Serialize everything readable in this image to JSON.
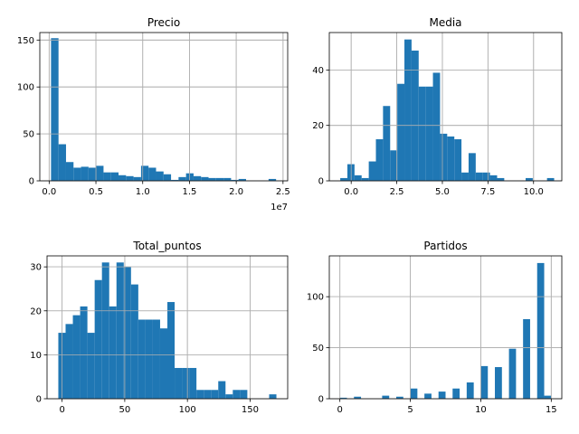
{
  "chart_data": [
    {
      "type": "bar",
      "title": "Precio",
      "xlabel": "",
      "ylabel": "",
      "x_offset_label": "1e7",
      "grid": true,
      "color": "#1f77b4",
      "bin_width": 0.0802,
      "xlim": [
        -0.1,
        2.55
      ],
      "ylim": [
        0,
        158
      ],
      "xticks": [
        0.0,
        0.5,
        1.0,
        1.5,
        2.0,
        2.5
      ],
      "xtick_labels": [
        "0.0",
        "0.5",
        "1.0",
        "1.5",
        "2.0",
        "2.5"
      ],
      "yticks": [
        0,
        50,
        100,
        150
      ],
      "ytick_labels": [
        "0",
        "50",
        "100",
        "150"
      ],
      "bin_starts": [
        0.0198,
        0.1,
        0.1802,
        0.2604,
        0.3406,
        0.4208,
        0.501,
        0.5812,
        0.6614,
        0.7416,
        0.8218,
        0.902,
        0.9822,
        1.0624,
        1.1426,
        1.2228,
        1.303,
        1.3832,
        1.4634,
        1.5436,
        1.6238,
        1.704,
        1.7842,
        1.8644,
        1.9446,
        2.0248,
        2.105,
        2.1852,
        2.2654,
        2.3456
      ],
      "values": [
        152,
        39,
        20,
        14,
        15,
        14,
        16,
        9,
        9,
        6,
        5,
        4,
        16,
        14,
        10,
        7,
        1,
        4,
        8,
        5,
        4,
        3,
        3,
        3,
        1,
        2,
        0,
        0,
        0,
        2
      ]
    },
    {
      "type": "bar",
      "title": "Media",
      "xlabel": "",
      "ylabel": "",
      "grid": true,
      "color": "#1f77b4",
      "bin_width": 0.391,
      "xlim": [
        -1.2,
        11.55
      ],
      "ylim": [
        0,
        53.5
      ],
      "xticks": [
        0.0,
        2.5,
        5.0,
        7.5,
        10.0
      ],
      "xtick_labels": [
        "0.0",
        "2.5",
        "5.0",
        "7.5",
        "10.0"
      ],
      "yticks": [
        0,
        20,
        40
      ],
      "ytick_labels": [
        "0",
        "20",
        "40"
      ],
      "bin_starts": [
        -0.6,
        -0.209,
        0.182,
        0.573,
        0.964,
        1.355,
        1.746,
        2.137,
        2.528,
        2.919,
        3.31,
        3.701,
        4.092,
        4.483,
        4.874,
        5.265,
        5.656,
        6.047,
        6.438,
        6.829,
        7.22,
        7.611,
        8.002,
        8.393,
        8.784,
        9.175,
        9.566,
        9.957,
        10.348,
        10.739
      ],
      "values": [
        1,
        6,
        2,
        1,
        7,
        15,
        27,
        11,
        35,
        51,
        47,
        34,
        34,
        39,
        17,
        16,
        15,
        3,
        10,
        3,
        3,
        2,
        1,
        0,
        0,
        0,
        1,
        0,
        0,
        1
      ]
    },
    {
      "type": "bar",
      "title": "Total_puntos",
      "xlabel": "",
      "ylabel": "",
      "grid": true,
      "color": "#1f77b4",
      "bin_width": 5.8,
      "xlim": [
        -12,
        180
      ],
      "ylim": [
        0,
        32.5
      ],
      "xticks": [
        0,
        50,
        100,
        150
      ],
      "xtick_labels": [
        "0",
        "50",
        "100",
        "150"
      ],
      "yticks": [
        0,
        10,
        20,
        30
      ],
      "ytick_labels": [
        "0",
        "10",
        "20",
        "30"
      ],
      "bin_starts": [
        -3.0,
        2.8,
        8.6,
        14.4,
        20.2,
        26.0,
        31.8,
        37.6,
        43.4,
        49.2,
        55.0,
        60.8,
        66.6,
        72.4,
        78.2,
        84.0,
        89.8,
        95.6,
        101.4,
        107.2,
        113.0,
        118.8,
        124.6,
        130.4,
        136.2,
        142.0,
        147.8,
        153.6,
        159.4,
        165.2
      ],
      "values": [
        15,
        17,
        19,
        21,
        15,
        27,
        31,
        21,
        31,
        30,
        26,
        18,
        18,
        18,
        16,
        22,
        7,
        7,
        7,
        2,
        2,
        2,
        4,
        1,
        2,
        2,
        0,
        0,
        0,
        1
      ]
    },
    {
      "type": "bar",
      "title": "Partidos",
      "xlabel": "",
      "ylabel": "",
      "grid": true,
      "color": "#1f77b4",
      "bin_width": 0.5,
      "xlim": [
        -0.75,
        15.75
      ],
      "ylim": [
        0,
        140
      ],
      "xticks": [
        0,
        5,
        10,
        15
      ],
      "xtick_labels": [
        "0",
        "5",
        "10",
        "15"
      ],
      "yticks": [
        0,
        50,
        100
      ],
      "ytick_labels": [
        "0",
        "50",
        "100"
      ],
      "bin_starts": [
        0.0,
        0.5,
        1.0,
        1.5,
        2.0,
        2.5,
        3.0,
        3.5,
        4.0,
        4.5,
        5.0,
        5.5,
        6.0,
        6.5,
        7.0,
        7.5,
        8.0,
        8.5,
        9.0,
        9.5,
        10.0,
        10.5,
        11.0,
        11.5,
        12.0,
        12.5,
        13.0,
        13.5,
        14.0,
        14.5
      ],
      "values": [
        1,
        0,
        2,
        0,
        0,
        0,
        3,
        0,
        2,
        0,
        10,
        0,
        5,
        0,
        7,
        0,
        10,
        0,
        16,
        0,
        32,
        0,
        31,
        0,
        49,
        0,
        78,
        0,
        133,
        3
      ]
    }
  ]
}
